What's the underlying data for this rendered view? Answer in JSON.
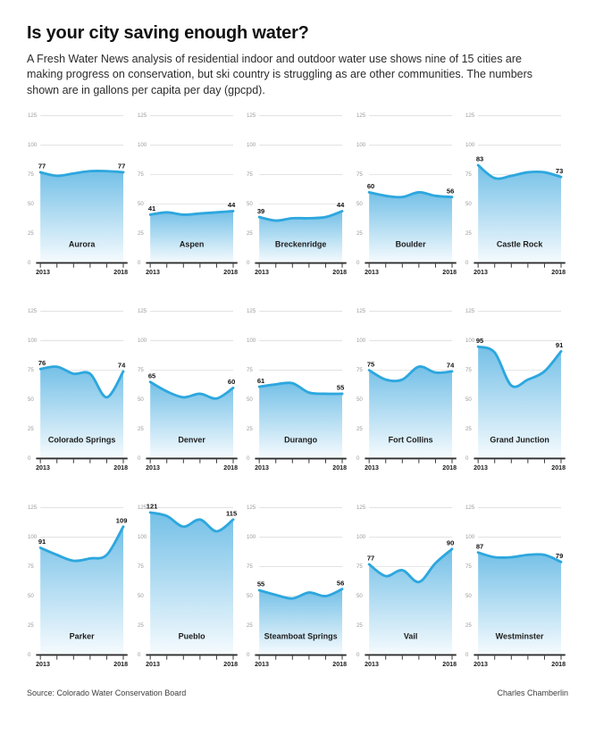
{
  "header": {
    "title": "Is your city saving enough water?",
    "subtitle": "A Fresh Water News analysis of residential indoor and outdoor water use shows nine of 15 cities are making progress on conservation, but ski country is struggling as are other communities. The numbers shown are in gallons per capita per day (gpcpd)."
  },
  "footer": {
    "source": "Source: Colorado Water Conservation Board",
    "credit": "Charles Chamberlin"
  },
  "axes": {
    "y_ticks": [
      0,
      25,
      50,
      75,
      100,
      125
    ],
    "ylim": [
      0,
      125
    ],
    "x_ticks": [
      2013,
      2014,
      2015,
      2016,
      2017,
      2018
    ],
    "x_axis_labels": [
      "2013",
      "2018"
    ],
    "grid": "horizontal-only"
  },
  "colors": {
    "line": "#2da7de",
    "fill_top": "#74c0e7",
    "fill_bottom": "#f6fbfe",
    "gridline": "#d9d9d9",
    "axis": "#2e2e2e",
    "y_tick_label": "#9b9b9b",
    "year_label": "#1a1a1a",
    "value_label": "#111111",
    "city_label": "#1d1d1d"
  },
  "chart_data": [
    {
      "type": "area",
      "city": "Aurora",
      "x": [
        2013,
        2014,
        2015,
        2016,
        2017,
        2018
      ],
      "values": [
        77,
        74,
        76,
        78,
        78,
        77
      ],
      "start_label": "77",
      "end_label": "77",
      "ylim": [
        0,
        125
      ]
    },
    {
      "type": "area",
      "city": "Aspen",
      "x": [
        2013,
        2014,
        2015,
        2016,
        2017,
        2018
      ],
      "values": [
        41,
        43,
        41,
        42,
        43,
        44
      ],
      "start_label": "41",
      "end_label": "44",
      "ylim": [
        0,
        125
      ]
    },
    {
      "type": "area",
      "city": "Breckenridge",
      "x": [
        2013,
        2014,
        2015,
        2016,
        2017,
        2018
      ],
      "values": [
        39,
        36,
        38,
        38,
        39,
        44
      ],
      "start_label": "39",
      "end_label": "44",
      "ylim": [
        0,
        125
      ]
    },
    {
      "type": "area",
      "city": "Boulder",
      "x": [
        2013,
        2014,
        2015,
        2016,
        2017,
        2018
      ],
      "values": [
        60,
        57,
        56,
        60,
        57,
        56
      ],
      "start_label": "60",
      "end_label": "56",
      "ylim": [
        0,
        125
      ]
    },
    {
      "type": "area",
      "city": "Castle Rock",
      "x": [
        2013,
        2014,
        2015,
        2016,
        2017,
        2018
      ],
      "values": [
        83,
        72,
        74,
        77,
        77,
        73
      ],
      "start_label": "83",
      "end_label": "73",
      "ylim": [
        0,
        125
      ]
    },
    {
      "type": "area",
      "city": "Colorado Springs",
      "x": [
        2013,
        2014,
        2015,
        2016,
        2017,
        2018
      ],
      "values": [
        76,
        78,
        72,
        72,
        52,
        74
      ],
      "start_label": "76",
      "end_label": "74",
      "ylim": [
        0,
        125
      ]
    },
    {
      "type": "area",
      "city": "Denver",
      "x": [
        2013,
        2014,
        2015,
        2016,
        2017,
        2018
      ],
      "values": [
        65,
        57,
        52,
        55,
        51,
        60
      ],
      "start_label": "65",
      "end_label": "60",
      "ylim": [
        0,
        125
      ]
    },
    {
      "type": "area",
      "city": "Durango",
      "x": [
        2013,
        2014,
        2015,
        2016,
        2017,
        2018
      ],
      "values": [
        61,
        63,
        64,
        56,
        55,
        55
      ],
      "start_label": "61",
      "end_label": "55",
      "ylim": [
        0,
        125
      ]
    },
    {
      "type": "area",
      "city": "Fort Collins",
      "x": [
        2013,
        2014,
        2015,
        2016,
        2017,
        2018
      ],
      "values": [
        75,
        67,
        67,
        78,
        73,
        74
      ],
      "start_label": "75",
      "end_label": "74",
      "ylim": [
        0,
        125
      ]
    },
    {
      "type": "area",
      "city": "Grand Junction",
      "x": [
        2013,
        2014,
        2015,
        2016,
        2017,
        2018
      ],
      "values": [
        95,
        90,
        62,
        67,
        74,
        91
      ],
      "start_label": "95",
      "end_label": "91",
      "ylim": [
        0,
        125
      ]
    },
    {
      "type": "area",
      "city": "Parker",
      "x": [
        2013,
        2014,
        2015,
        2016,
        2017,
        2018
      ],
      "values": [
        91,
        85,
        80,
        82,
        85,
        109
      ],
      "start_label": "91",
      "end_label": "109",
      "ylim": [
        0,
        125
      ]
    },
    {
      "type": "area",
      "city": "Pueblo",
      "x": [
        2013,
        2014,
        2015,
        2016,
        2017,
        2018
      ],
      "values": [
        121,
        118,
        109,
        115,
        105,
        115
      ],
      "start_label": "121",
      "end_label": "115",
      "ylim": [
        0,
        125
      ]
    },
    {
      "type": "area",
      "city": "Steamboat Springs",
      "x": [
        2013,
        2014,
        2015,
        2016,
        2017,
        2018
      ],
      "values": [
        55,
        51,
        48,
        53,
        50,
        56
      ],
      "start_label": "55",
      "end_label": "56",
      "ylim": [
        0,
        125
      ]
    },
    {
      "type": "area",
      "city": "Vail",
      "x": [
        2013,
        2014,
        2015,
        2016,
        2017,
        2018
      ],
      "values": [
        77,
        67,
        72,
        62,
        78,
        90
      ],
      "start_label": "77",
      "end_label": "90",
      "ylim": [
        0,
        125
      ]
    },
    {
      "type": "area",
      "city": "Westminster",
      "x": [
        2013,
        2014,
        2015,
        2016,
        2017,
        2018
      ],
      "values": [
        87,
        83,
        83,
        85,
        85,
        79
      ],
      "start_label": "87",
      "end_label": "79",
      "ylim": [
        0,
        125
      ]
    }
  ]
}
